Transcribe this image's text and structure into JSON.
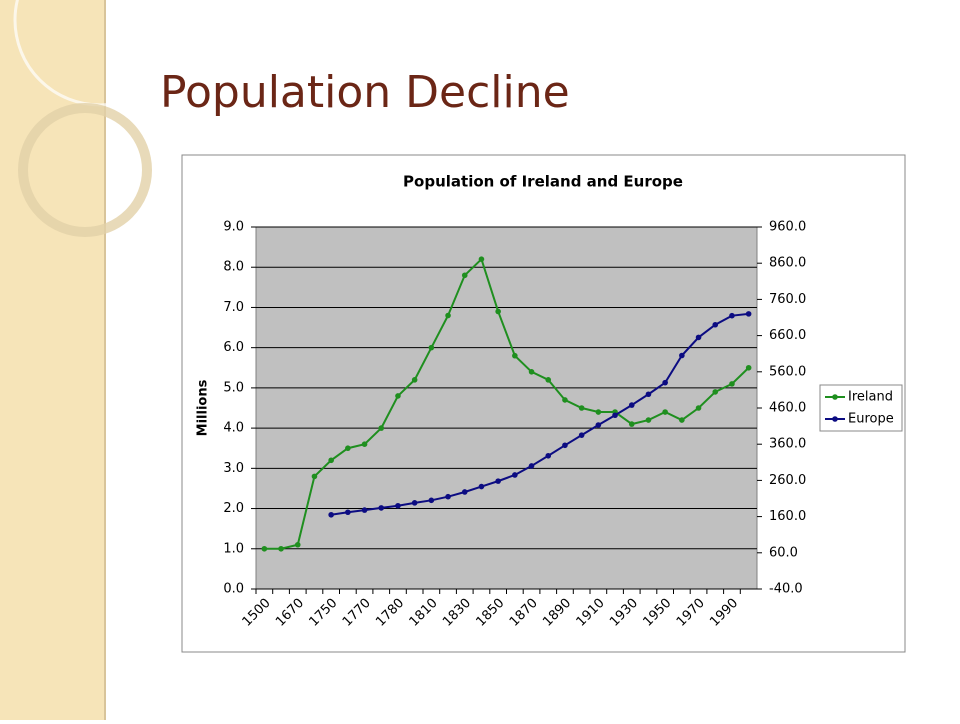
{
  "slide_title": "Population Decline",
  "chart_data": {
    "type": "line",
    "title": "Population of Ireland and Europe",
    "y_label": "Millions",
    "categories": [
      "1500",
      null,
      "1670",
      null,
      "1750",
      null,
      "1770",
      null,
      "1780",
      null,
      "1810",
      null,
      "1830",
      null,
      "1850",
      null,
      "1870",
      null,
      "1890",
      null,
      "1910",
      null,
      "1930",
      null,
      "1950",
      null,
      "1970",
      null,
      "1990",
      null
    ],
    "series": [
      {
        "name": "Ireland",
        "color": "#1f8f1f",
        "values": [
          1.0,
          1.0,
          1.1,
          2.8,
          3.2,
          3.5,
          3.6,
          4.0,
          4.8,
          5.2,
          6.0,
          6.8,
          7.8,
          8.2,
          6.9,
          5.8,
          5.4,
          5.2,
          4.7,
          4.5,
          4.4,
          4.4,
          4.1,
          4.2,
          4.4,
          4.2,
          4.5,
          4.9,
          5.1,
          5.5
        ]
      },
      {
        "name": "Europe",
        "color": "#0c0c82",
        "axis": "y2",
        "values": [
          null,
          null,
          null,
          null,
          165,
          172,
          178,
          184,
          190,
          198,
          205,
          215,
          228,
          243,
          258,
          275,
          300,
          328,
          357,
          385,
          413,
          440,
          468,
          498,
          530,
          605,
          655,
          690,
          715,
          720
        ]
      }
    ],
    "ylim": [
      0,
      9
    ],
    "yticks": [
      {
        "value": 0,
        "label": "0.0"
      },
      {
        "value": 1,
        "label": "1.0"
      },
      {
        "value": 2,
        "label": "2.0"
      },
      {
        "value": 3,
        "label": "3.0"
      },
      {
        "value": 4,
        "label": "4.0"
      },
      {
        "value": 5,
        "label": "5.0"
      },
      {
        "value": 6,
        "label": "6.0"
      },
      {
        "value": 7,
        "label": "7.0"
      },
      {
        "value": 8,
        "label": "8.0"
      },
      {
        "value": 9,
        "label": "9.0"
      }
    ],
    "y2lim": [
      -40,
      960
    ],
    "y2ticks": [
      {
        "value": -40,
        "label": "-40.0"
      },
      {
        "value": 60,
        "label": "60.0"
      },
      {
        "value": 160,
        "label": "160.0"
      },
      {
        "value": 260,
        "label": "260.0"
      },
      {
        "value": 360,
        "label": "360.0"
      },
      {
        "value": 460,
        "label": "460.0"
      },
      {
        "value": 560,
        "label": "560.0"
      },
      {
        "value": 660,
        "label": "660.0"
      },
      {
        "value": 760,
        "label": "760.0"
      },
      {
        "value": 860,
        "label": "860.0"
      },
      {
        "value": 960,
        "label": "960.0"
      }
    ],
    "grid": true,
    "legend": "right"
  }
}
